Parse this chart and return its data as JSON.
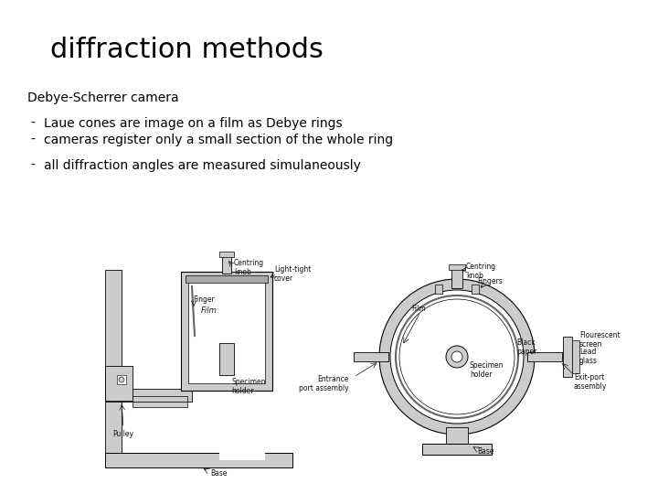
{
  "title": "diffraction methods",
  "subtitle": "Debye-Scherrer camera",
  "bullet1a": "Laue cones are image on a film as Debye rings",
  "bullet1b": "cameras register only a small section of the whole ring",
  "bullet2": "all diffraction angles are measured simulaneously",
  "bg_color": "#ffffff",
  "title_color": "#000000",
  "text_color": "#000000",
  "title_fontsize": 22,
  "subtitle_fontsize": 10,
  "bullet_fontsize": 10,
  "label_fontsize": 5.5,
  "diagram_gray": "#aaaaaa",
  "diagram_lgray": "#cccccc",
  "diagram_dgray": "#666666",
  "diagram_hatch": "#999999"
}
